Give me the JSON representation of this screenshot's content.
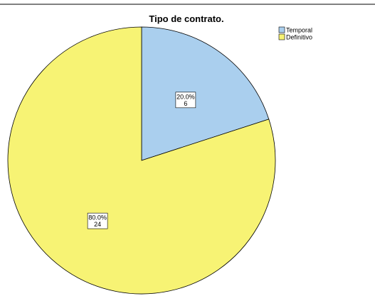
{
  "chart_data": {
    "type": "pie",
    "title": "Tipo de contrato.",
    "categories": [
      "Temporal",
      "Definitivo"
    ],
    "values": [
      6,
      24
    ],
    "percent_labels": [
      "20.0%",
      "80.0%"
    ],
    "count_labels": [
      "6",
      "24"
    ],
    "colors": [
      "#aacfee",
      "#f7f374"
    ],
    "legend_position": "top-right",
    "start": "12 o'clock",
    "direction": "clockwise"
  }
}
